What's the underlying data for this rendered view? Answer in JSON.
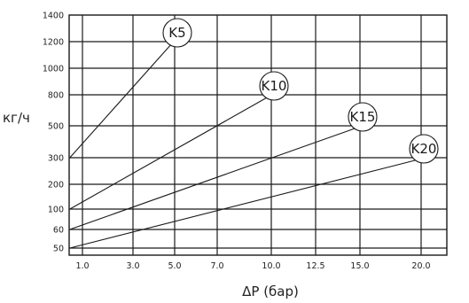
{
  "chart_data": {
    "type": "line",
    "xlabel": "ΔP (бар)",
    "ylabel": "кг/ч",
    "x_ticks": [
      "1.0",
      "3.0",
      "5.0",
      "7.0",
      "10.0",
      "12.5",
      "15.0",
      "20.0"
    ],
    "y_ticks": [
      "1400",
      "1200",
      "1000",
      "800",
      "500",
      "300",
      "200",
      "100",
      "60",
      "50"
    ],
    "grid": true,
    "series": [
      {
        "name": "K5",
        "points": [
          [
            "0.5",
            "300"
          ],
          [
            "5.0",
            "1200"
          ]
        ]
      },
      {
        "name": "K10",
        "points": [
          [
            "0.5",
            "100"
          ],
          [
            "10.0",
            "800"
          ]
        ]
      },
      {
        "name": "K15",
        "points": [
          [
            "0.5",
            "60"
          ],
          [
            "15.0",
            "500"
          ]
        ]
      },
      {
        "name": "K20",
        "points": [
          [
            "0.5",
            "50"
          ],
          [
            "20.0",
            "300"
          ]
        ]
      }
    ]
  }
}
